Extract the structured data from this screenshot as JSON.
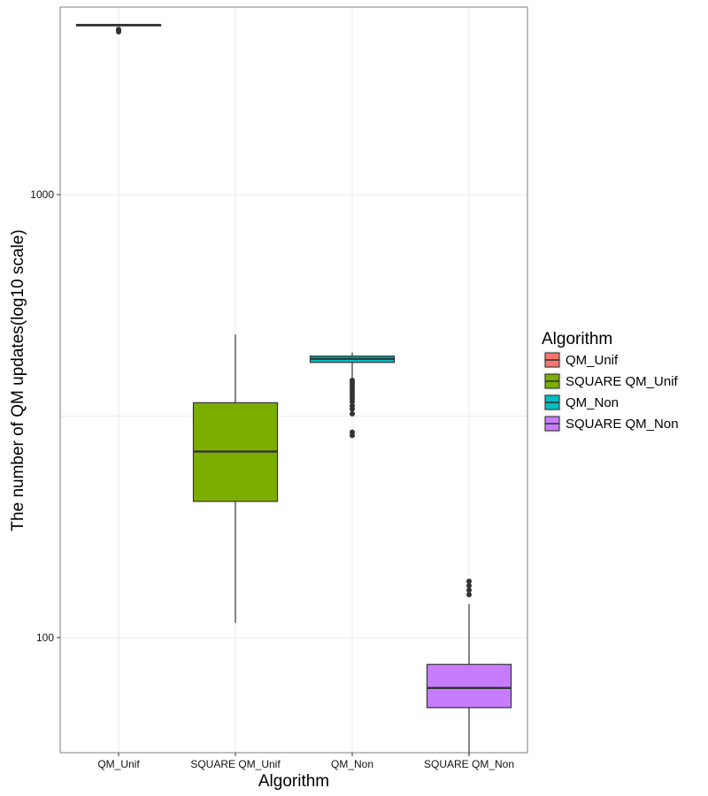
{
  "chart_data": {
    "type": "box",
    "title": "",
    "xlabel": "Algorithm",
    "ylabel": "The number of QM updates(log10 scale)",
    "y_scale": "log10",
    "ylim": [
      55,
      2650
    ],
    "y_ticks": [
      100,
      1000
    ],
    "y_tick_labels": [
      "100",
      "1000"
    ],
    "grid": true,
    "legend": {
      "title": "Algorithm",
      "position": "right",
      "entries": [
        "QM_Unif",
        "SQUARE QM_Unif",
        "QM_Non",
        "SQUARE QM_Non"
      ]
    },
    "categories": [
      "QM_Unif",
      "SQUARE QM_Unif",
      "QM_Non",
      "SQUARE QM_Non"
    ],
    "series": [
      {
        "name": "QM_Unif",
        "color": "#F8766D",
        "whisker_low": 2410,
        "q1": 2410,
        "median": 2415,
        "q3": 2420,
        "whisker_high": 2420,
        "outliers": [
          2360,
          2345,
          2330
        ]
      },
      {
        "name": "SQUARE QM_Unif",
        "color": "#7CAE00",
        "whisker_low": 108,
        "q1": 203,
        "median": 263,
        "q3": 339,
        "whisker_high": 483,
        "outliers": []
      },
      {
        "name": "QM_Non",
        "color": "#00BFC4",
        "whisker_low": 356,
        "q1": 418,
        "median": 426,
        "q3": 432,
        "whisker_high": 440,
        "outliers": [
          381,
          376,
          371,
          366,
          361,
          356,
          351,
          346,
          341,
          334,
          328,
          320,
          291,
          286
        ]
      },
      {
        "name": "SQUARE QM_Non",
        "color": "#C77CFF",
        "whisker_low": 54,
        "q1": 69.5,
        "median": 77,
        "q3": 87,
        "whisker_high": 119,
        "outliers": [
          125,
          128,
          131,
          134
        ]
      }
    ]
  }
}
